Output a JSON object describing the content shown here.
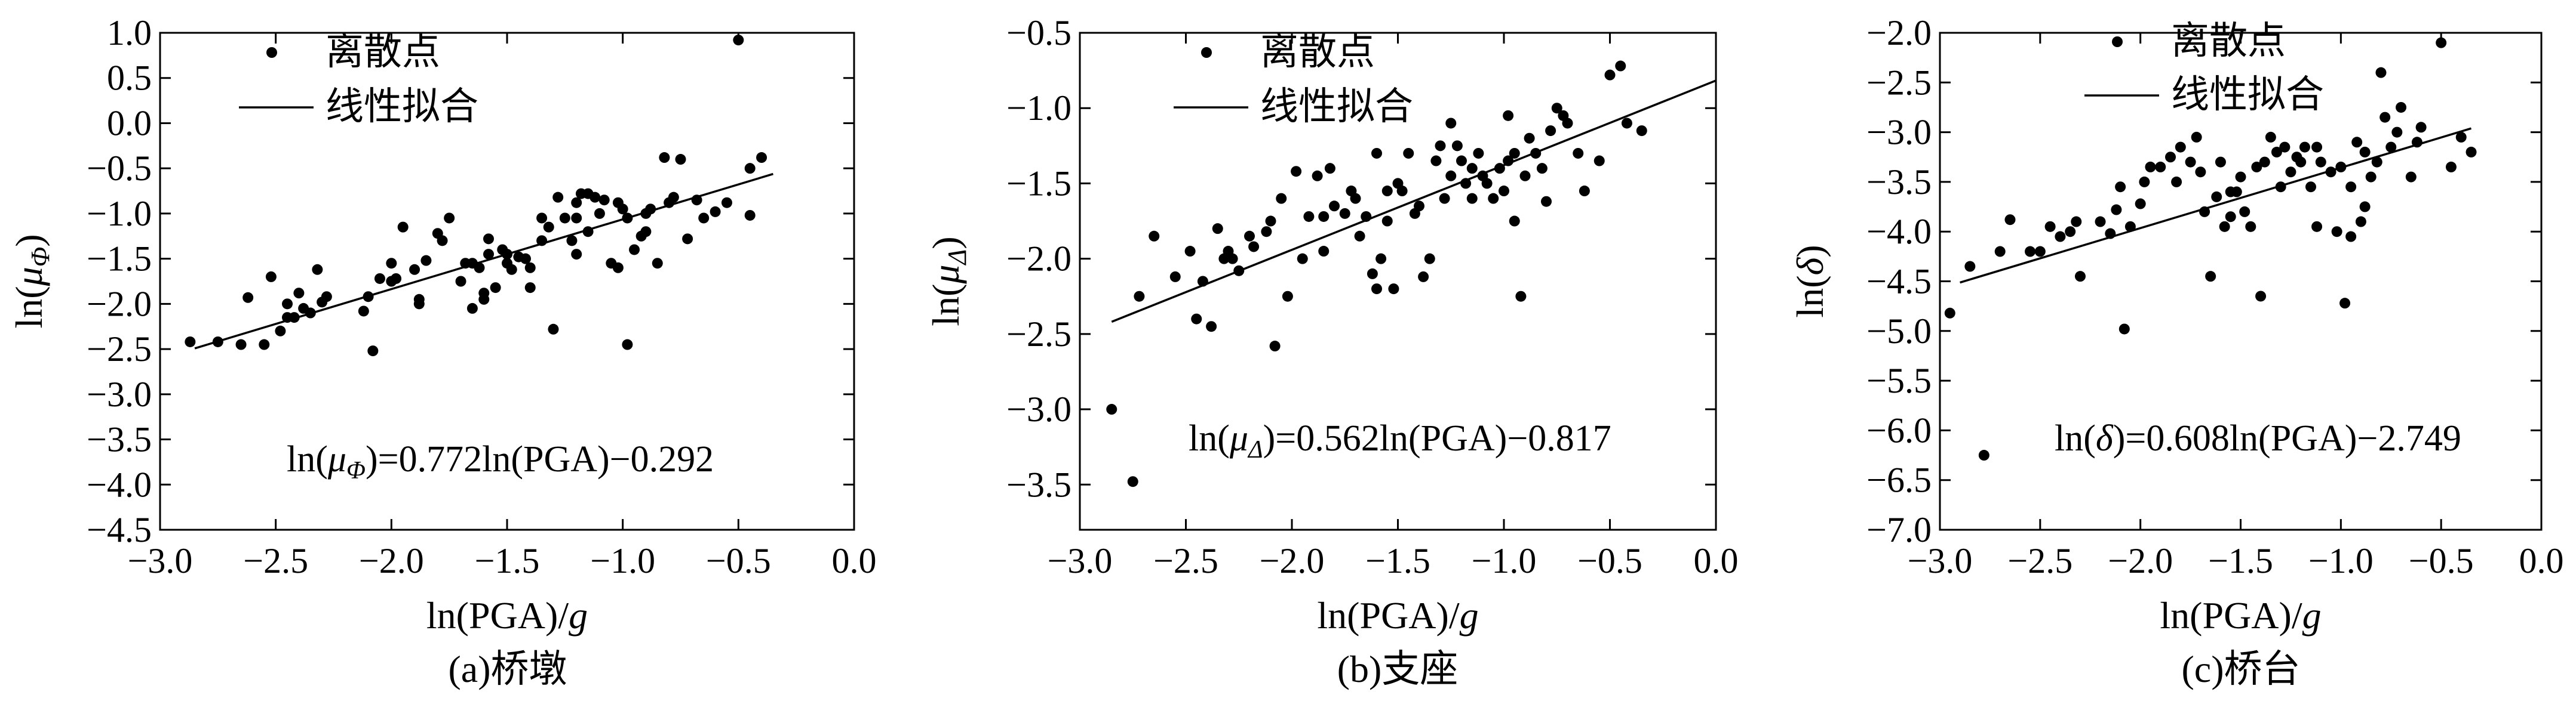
{
  "figure": {
    "charts_count": 3
  },
  "chart_data": [
    {
      "type": "scatter",
      "id": "a",
      "caption": "(a)桥墩",
      "xlabel": "ln(PGA)/g",
      "ylabel": "ln(μΦ)",
      "xlim": [
        -3.0,
        0.0
      ],
      "ylim": [
        -4.5,
        1.0
      ],
      "xticks": [
        -3.0,
        -2.5,
        -2.0,
        -1.5,
        -1.0,
        -0.5,
        0.0
      ],
      "xtick_labels": [
        "−3.0",
        "−2.5",
        "−2.0",
        "−1.5",
        "−1.0",
        "−0.5",
        "0.0"
      ],
      "yticks": [
        1.0,
        0.5,
        0.0,
        -0.5,
        -1.0,
        -1.5,
        -2.0,
        -2.5,
        -3.0,
        -3.5,
        -4.0,
        -4.5
      ],
      "ytick_labels": [
        "1.0",
        "0.5",
        "0.0",
        "−0.5",
        "−1.0",
        "−1.5",
        "−2.0",
        "−2.5",
        "−3.0",
        "−3.5",
        "−4.0",
        "−4.5"
      ],
      "legend": {
        "position": "top-left",
        "scatter_label": "离散点",
        "line_label": "线性拟合"
      },
      "fit": {
        "slope": 0.772,
        "intercept": -0.292,
        "x_range": [
          -2.85,
          -0.35
        ]
      },
      "equation": {
        "prefix": "ln(",
        "sym": "μ",
        "sub": "Φ",
        "rest": ")=0.772ln(PGA)−0.292",
        "position": "bottom-right"
      },
      "points": [
        [
          -2.87,
          -2.42
        ],
        [
          -2.75,
          -2.42
        ],
        [
          -2.65,
          -2.45
        ],
        [
          -2.62,
          -1.93
        ],
        [
          -2.55,
          -2.45
        ],
        [
          -2.52,
          -1.7
        ],
        [
          -2.48,
          -2.3
        ],
        [
          -2.45,
          -2.0
        ],
        [
          -2.42,
          -2.15
        ],
        [
          -2.4,
          -1.88
        ],
        [
          -2.38,
          -2.05
        ],
        [
          -2.35,
          -2.1
        ],
        [
          -2.32,
          -1.62
        ],
        [
          -2.3,
          -1.98
        ],
        [
          -2.28,
          -1.92
        ],
        [
          -2.12,
          -2.08
        ],
        [
          -2.1,
          -1.92
        ],
        [
          -2.08,
          -2.52
        ],
        [
          -2.05,
          -1.72
        ],
        [
          -2.0,
          -1.55
        ],
        [
          -2.0,
          -1.75
        ],
        [
          -1.98,
          -1.72
        ],
        [
          -1.95,
          -1.15
        ],
        [
          -1.9,
          -1.62
        ],
        [
          -1.88,
          -2.0
        ],
        [
          -1.85,
          -1.52
        ],
        [
          -1.8,
          -1.22
        ],
        [
          -1.78,
          -1.3
        ],
        [
          -1.75,
          -1.05
        ],
        [
          -1.7,
          -1.75
        ],
        [
          -1.68,
          -1.55
        ],
        [
          -1.65,
          -1.55
        ],
        [
          -1.62,
          -1.6
        ],
        [
          -1.6,
          -1.88
        ],
        [
          -1.6,
          -1.95
        ],
        [
          -1.58,
          -1.28
        ],
        [
          -1.55,
          -1.82
        ],
        [
          -1.52,
          -1.4
        ],
        [
          -1.5,
          -1.55
        ],
        [
          -1.5,
          -1.45
        ],
        [
          -1.48,
          -1.62
        ],
        [
          -1.45,
          -1.48
        ],
        [
          -1.42,
          -1.5
        ],
        [
          -1.4,
          -1.6
        ],
        [
          -1.4,
          -1.82
        ],
        [
          -1.35,
          -1.05
        ],
        [
          -1.32,
          -1.15
        ],
        [
          -1.3,
          -2.28
        ],
        [
          -1.28,
          -0.82
        ],
        [
          -1.25,
          -1.05
        ],
        [
          -1.22,
          -1.3
        ],
        [
          -1.2,
          -1.05
        ],
        [
          -1.2,
          -0.88
        ],
        [
          -1.18,
          -0.78
        ],
        [
          -1.15,
          -0.78
        ],
        [
          -1.12,
          -0.82
        ],
        [
          -1.1,
          -1.0
        ],
        [
          -1.08,
          -0.85
        ],
        [
          -1.05,
          -1.55
        ],
        [
          -1.02,
          -0.88
        ],
        [
          -1.0,
          -0.95
        ],
        [
          -0.98,
          -1.05
        ],
        [
          -0.95,
          -1.4
        ],
        [
          -0.92,
          -1.25
        ],
        [
          -0.9,
          -1.0
        ],
        [
          -0.88,
          -0.95
        ],
        [
          -0.85,
          -1.55
        ],
        [
          -0.82,
          -0.38
        ],
        [
          -0.8,
          -0.88
        ],
        [
          -0.78,
          -0.82
        ],
        [
          -0.72,
          -1.28
        ],
        [
          -0.68,
          -0.85
        ],
        [
          -0.65,
          -1.05
        ],
        [
          -0.6,
          -0.98
        ],
        [
          -0.55,
          -0.88
        ],
        [
          -0.5,
          0.92
        ],
        [
          -0.45,
          -0.5
        ],
        [
          -0.45,
          -1.02
        ],
        [
          -0.4,
          -0.38
        ],
        [
          -1.58,
          -1.45
        ],
        [
          -1.65,
          -2.05
        ],
        [
          -2.45,
          -2.15
        ],
        [
          -1.88,
          -1.95
        ],
        [
          -0.9,
          -1.2
        ],
        [
          -0.75,
          -0.4
        ],
        [
          -0.98,
          -2.45
        ],
        [
          -1.02,
          -1.6
        ],
        [
          -1.15,
          -1.2
        ],
        [
          -1.2,
          -1.45
        ],
        [
          -1.35,
          -1.3
        ]
      ]
    },
    {
      "type": "scatter",
      "id": "b",
      "caption": "(b)支座",
      "xlabel": "ln(PGA)/g",
      "ylabel": "ln(μΔ)",
      "xlim": [
        -3.0,
        0.0
      ],
      "ylim": [
        -3.8,
        -0.5
      ],
      "xticks": [
        -3.0,
        -2.5,
        -2.0,
        -1.5,
        -1.0,
        -0.5,
        0.0
      ],
      "xtick_labels": [
        "−3.0",
        "−2.5",
        "−2.0",
        "−1.5",
        "−1.0",
        "−0.5",
        "0.0"
      ],
      "yticks": [
        -0.5,
        -1.0,
        -1.5,
        -2.0,
        -2.5,
        -3.0,
        -3.5
      ],
      "ytick_labels": [
        "−0.5",
        "−1.0",
        "−1.5",
        "−2.0",
        "−2.5",
        "−3.0",
        "−3.5"
      ],
      "legend": {
        "position": "top-left",
        "scatter_label": "离散点",
        "line_label": "线性拟合"
      },
      "fit": {
        "slope": 0.562,
        "intercept": -0.817,
        "x_range": [
          -2.85,
          0.0
        ]
      },
      "equation": {
        "prefix": "ln(",
        "sym": "μ",
        "sub": "Δ",
        "rest": ")=0.562ln(PGA)−0.817",
        "position": "bottom-right"
      },
      "points": [
        [
          -2.85,
          -3.0
        ],
        [
          -2.75,
          -3.48
        ],
        [
          -2.72,
          -2.25
        ],
        [
          -2.65,
          -1.85
        ],
        [
          -2.55,
          -2.12
        ],
        [
          -2.48,
          -1.95
        ],
        [
          -2.45,
          -2.4
        ],
        [
          -2.42,
          -2.15
        ],
        [
          -2.38,
          -2.45
        ],
        [
          -2.35,
          -1.8
        ],
        [
          -2.32,
          -2.0
        ],
        [
          -2.3,
          -1.95
        ],
        [
          -2.28,
          -2.0
        ],
        [
          -2.25,
          -2.08
        ],
        [
          -2.18,
          -1.92
        ],
        [
          -2.12,
          -1.82
        ],
        [
          -2.1,
          -1.75
        ],
        [
          -2.08,
          -2.58
        ],
        [
          -2.05,
          -1.6
        ],
        [
          -2.02,
          -2.25
        ],
        [
          -1.98,
          -1.42
        ],
        [
          -1.95,
          -2.0
        ],
        [
          -1.92,
          -1.72
        ],
        [
          -1.88,
          -1.45
        ],
        [
          -1.85,
          -1.72
        ],
        [
          -1.82,
          -1.4
        ],
        [
          -1.8,
          -1.65
        ],
        [
          -1.75,
          -1.7
        ],
        [
          -1.72,
          -1.55
        ],
        [
          -1.7,
          -1.6
        ],
        [
          -1.68,
          -1.85
        ],
        [
          -1.65,
          -1.72
        ],
        [
          -1.62,
          -2.1
        ],
        [
          -1.6,
          -1.3
        ],
        [
          -1.58,
          -2.0
        ],
        [
          -1.55,
          -1.55
        ],
        [
          -1.52,
          -2.2
        ],
        [
          -1.5,
          -1.5
        ],
        [
          -1.48,
          -1.55
        ],
        [
          -1.45,
          -1.3
        ],
        [
          -1.42,
          -1.7
        ],
        [
          -1.4,
          -1.65
        ],
        [
          -1.38,
          -2.12
        ],
        [
          -1.35,
          -2.0
        ],
        [
          -1.32,
          -1.35
        ],
        [
          -1.3,
          -1.25
        ],
        [
          -1.28,
          -1.6
        ],
        [
          -1.25,
          -1.45
        ],
        [
          -1.22,
          -1.25
        ],
        [
          -1.2,
          -1.35
        ],
        [
          -1.18,
          -1.5
        ],
        [
          -1.15,
          -1.4
        ],
        [
          -1.12,
          -1.3
        ],
        [
          -1.1,
          -1.45
        ],
        [
          -1.08,
          -1.5
        ],
        [
          -1.05,
          -1.6
        ],
        [
          -1.02,
          -1.4
        ],
        [
          -1.0,
          -1.55
        ],
        [
          -0.98,
          -1.05
        ],
        [
          -0.95,
          -1.3
        ],
        [
          -0.95,
          -1.75
        ],
        [
          -0.92,
          -2.25
        ],
        [
          -0.9,
          -1.45
        ],
        [
          -0.88,
          -1.2
        ],
        [
          -0.85,
          -1.3
        ],
        [
          -0.82,
          -1.4
        ],
        [
          -0.8,
          -1.62
        ],
        [
          -0.78,
          -1.15
        ],
        [
          -0.75,
          -1.0
        ],
        [
          -0.72,
          -1.05
        ],
        [
          -0.7,
          -1.1
        ],
        [
          -0.65,
          -1.3
        ],
        [
          -0.62,
          -1.55
        ],
        [
          -0.55,
          -1.35
        ],
        [
          -0.5,
          -0.78
        ],
        [
          -0.45,
          -0.72
        ],
        [
          -0.42,
          -1.1
        ],
        [
          -0.35,
          -1.15
        ],
        [
          -1.55,
          -1.75
        ],
        [
          -1.6,
          -2.2
        ],
        [
          -2.2,
          -1.85
        ],
        [
          -1.85,
          -1.95
        ],
        [
          -1.15,
          -1.6
        ],
        [
          -1.25,
          -1.1
        ],
        [
          -0.98,
          -1.35
        ]
      ]
    },
    {
      "type": "scatter",
      "id": "c",
      "caption": "(c)桥台",
      "xlabel": "ln(PGA)/g",
      "ylabel": "ln(δ)",
      "xlim": [
        -3.0,
        0.0
      ],
      "ylim": [
        -7.0,
        -2.0
      ],
      "xticks": [
        -3.0,
        -2.5,
        -2.0,
        -1.5,
        -1.0,
        -0.5,
        0.0
      ],
      "xtick_labels": [
        "−3.0",
        "−2.5",
        "−2.0",
        "−1.5",
        "−1.0",
        "−0.5",
        "0.0"
      ],
      "yticks": [
        -2.0,
        -2.5,
        -3.0,
        -3.5,
        -4.0,
        -4.5,
        -5.0,
        -5.5,
        -6.0,
        -6.5,
        -7.0
      ],
      "ytick_labels": [
        "−2.0",
        "−2.5",
        "−3.0",
        "−3.5",
        "−4.0",
        "−4.5",
        "−5.0",
        "−5.5",
        "−6.0",
        "−6.5",
        "−7.0"
      ],
      "legend": {
        "position": "top-left",
        "scatter_label": "离散点",
        "line_label": "线性拟合"
      },
      "fit": {
        "slope": 0.608,
        "intercept": -2.749,
        "x_range": [
          -2.9,
          -0.35
        ]
      },
      "equation": {
        "prefix": "ln(",
        "sym": "δ",
        "sub": "",
        "rest": ")=0.608ln(PGA)−2.749",
        "position": "bottom-right"
      },
      "points": [
        [
          -2.95,
          -4.82
        ],
        [
          -2.85,
          -4.35
        ],
        [
          -2.78,
          -6.25
        ],
        [
          -2.7,
          -4.2
        ],
        [
          -2.65,
          -3.88
        ],
        [
          -2.55,
          -4.2
        ],
        [
          -2.5,
          -4.2
        ],
        [
          -2.45,
          -3.95
        ],
        [
          -2.4,
          -4.05
        ],
        [
          -2.35,
          -4.0
        ],
        [
          -2.32,
          -3.9
        ],
        [
          -2.3,
          -4.45
        ],
        [
          -2.15,
          -4.02
        ],
        [
          -2.12,
          -3.78
        ],
        [
          -2.1,
          -3.55
        ],
        [
          -2.08,
          -4.98
        ],
        [
          -2.05,
          -3.95
        ],
        [
          -2.0,
          -3.72
        ],
        [
          -1.98,
          -3.5
        ],
        [
          -1.95,
          -3.35
        ],
        [
          -1.9,
          -3.35
        ],
        [
          -1.85,
          -3.25
        ],
        [
          -1.82,
          -3.5
        ],
        [
          -1.8,
          -3.15
        ],
        [
          -1.75,
          -3.3
        ],
        [
          -1.7,
          -3.4
        ],
        [
          -1.68,
          -3.8
        ],
        [
          -1.65,
          -4.45
        ],
        [
          -1.62,
          -3.65
        ],
        [
          -1.6,
          -3.3
        ],
        [
          -1.58,
          -3.95
        ],
        [
          -1.55,
          -3.6
        ],
        [
          -1.52,
          -3.6
        ],
        [
          -1.5,
          -3.45
        ],
        [
          -1.48,
          -3.8
        ],
        [
          -1.45,
          -3.95
        ],
        [
          -1.42,
          -3.35
        ],
        [
          -1.4,
          -4.65
        ],
        [
          -1.38,
          -3.3
        ],
        [
          -1.35,
          -3.05
        ],
        [
          -1.32,
          -3.2
        ],
        [
          -1.28,
          -3.15
        ],
        [
          -1.25,
          -3.4
        ],
        [
          -1.22,
          -3.25
        ],
        [
          -1.2,
          -3.3
        ],
        [
          -1.18,
          -3.15
        ],
        [
          -1.15,
          -3.55
        ],
        [
          -1.12,
          -3.95
        ],
        [
          -1.1,
          -3.3
        ],
        [
          -1.05,
          -3.4
        ],
        [
          -1.02,
          -4.0
        ],
        [
          -1.0,
          -3.35
        ],
        [
          -0.98,
          -4.72
        ],
        [
          -0.95,
          -3.55
        ],
        [
          -0.92,
          -3.1
        ],
        [
          -0.9,
          -3.9
        ],
        [
          -0.88,
          -3.75
        ],
        [
          -0.85,
          -3.45
        ],
        [
          -0.82,
          -3.3
        ],
        [
          -0.8,
          -2.4
        ],
        [
          -0.78,
          -2.85
        ],
        [
          -0.75,
          -3.15
        ],
        [
          -0.72,
          -3.0
        ],
        [
          -0.7,
          -2.75
        ],
        [
          -0.65,
          -3.45
        ],
        [
          -0.62,
          -3.1
        ],
        [
          -0.6,
          -2.95
        ],
        [
          -0.5,
          -2.1
        ],
        [
          -0.45,
          -3.35
        ],
        [
          -0.4,
          -3.05
        ],
        [
          -0.35,
          -3.2
        ],
        [
          -1.72,
          -3.05
        ],
        [
          -1.3,
          -3.55
        ],
        [
          -1.12,
          -3.15
        ],
        [
          -0.95,
          -4.05
        ],
        [
          -2.2,
          -3.9
        ],
        [
          -1.55,
          -3.85
        ],
        [
          -0.88,
          -3.2
        ]
      ]
    }
  ]
}
